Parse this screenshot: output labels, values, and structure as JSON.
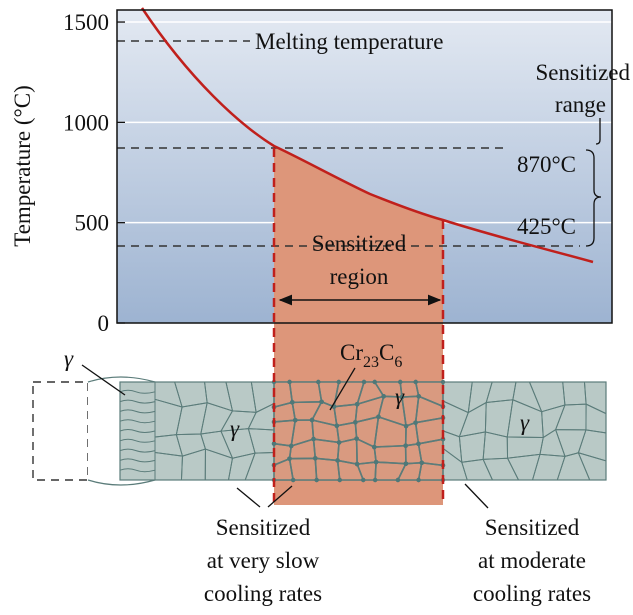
{
  "axis": {
    "label": "Temperature (°C)",
    "ylim": [
      0,
      1560
    ],
    "yticks": [
      0,
      500,
      1000,
      1500
    ]
  },
  "annotations": {
    "melting": "Melting temperature",
    "range": [
      "Sensitized",
      "range"
    ],
    "upper": "870°C",
    "lower": "425°C",
    "region": [
      "Sensitized",
      "region"
    ]
  },
  "microstructure": {
    "phase": "γ",
    "carbide": [
      "Cr",
      "23",
      "C",
      "6"
    ]
  },
  "captions": [
    [
      "Sensitized",
      "at very slow",
      "cooling rates"
    ],
    [
      "Sensitized",
      "at moderate",
      "cooling rates"
    ]
  ]
}
